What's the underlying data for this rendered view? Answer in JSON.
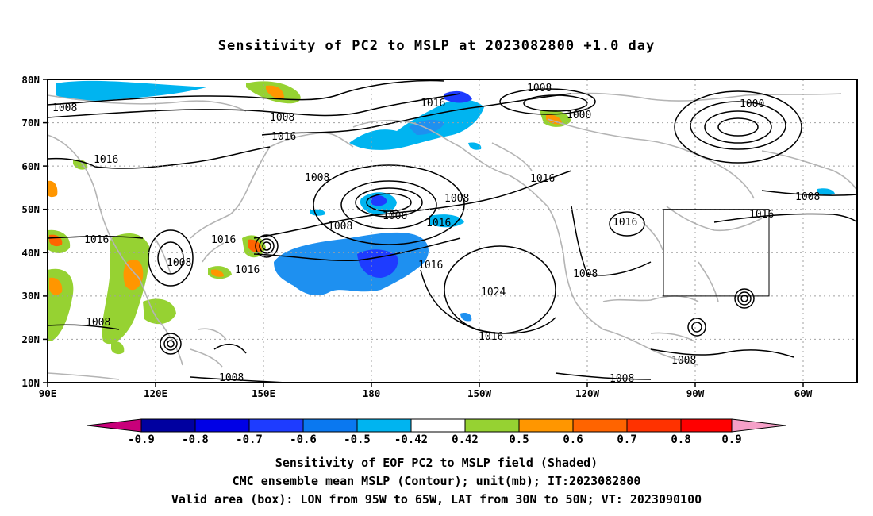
{
  "title": "Sensitivity of PC2 to MSLP at 2023082800 +1.0 day",
  "map": {
    "lat_labels": [
      "80N",
      "70N",
      "60N",
      "50N",
      "40N",
      "30N",
      "20N",
      "10N"
    ],
    "lon_labels": [
      "90E",
      "120E",
      "150E",
      "180",
      "150W",
      "120W",
      "90W",
      "60W"
    ],
    "valid_box": {
      "lon_from": "95W",
      "lon_to": "65W",
      "lat_from": "30N",
      "lat_to": "50N"
    },
    "isobar_labels": [
      "1008",
      "1008",
      "1016",
      "1016",
      "1008",
      "1016",
      "1000",
      "1000",
      "1016",
      "1008",
      "1016",
      "1008",
      "1000",
      "1016",
      "1008",
      "1016",
      "1008",
      "1008",
      "1016",
      "1016",
      "1016",
      "1024",
      "1008",
      "1008",
      "1016",
      "1008",
      "1008",
      "1008"
    ]
  },
  "colorbar": {
    "labels": [
      "-0.9",
      "-0.8",
      "-0.7",
      "-0.6",
      "-0.5",
      "-0.42",
      "0.42",
      "0.5",
      "0.6",
      "0.7",
      "0.8",
      "0.9"
    ],
    "colors": [
      "#0000a0",
      "#0000e6",
      "#1e3cff",
      "#0a78f0",
      "#00b4f0",
      "#ffffff",
      "#96d232",
      "#ff9600",
      "#ff6400",
      "#ff3200",
      "#ff0000"
    ],
    "left_arrow_color": "#c8007a",
    "right_arrow_color": "#f5a0c8"
  },
  "captions": {
    "line1": "Sensitivity of EOF PC2 to MSLP field (Shaded)",
    "line2": "CMC ensemble mean MSLP (Contour); unit(mb); IT:2023082800",
    "line3": "Valid area (box): LON from 95W to 65W, LAT from 30N to 50N; VT: 2023090100"
  }
}
